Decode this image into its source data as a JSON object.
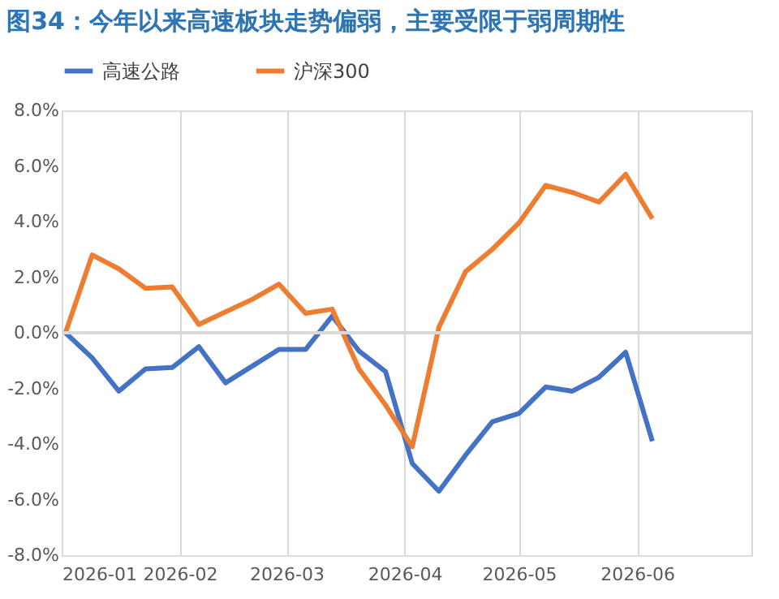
{
  "chart_data": {
    "type": "line",
    "title": "图34：今年以来高速板块走势偏弱，主要受限于弱周期性",
    "x": [
      "2026-01-02",
      "2026-01-09",
      "2026-01-16",
      "2026-01-23",
      "2026-01-30",
      "2026-02-06",
      "2026-02-13",
      "2026-02-20",
      "2026-02-27",
      "2026-03-06",
      "2026-03-13",
      "2026-03-20",
      "2026-03-27",
      "2026-04-03",
      "2026-04-10",
      "2026-04-17",
      "2026-04-24",
      "2026-05-01",
      "2026-05-08",
      "2026-05-15",
      "2026-05-22",
      "2026-05-29",
      "2026-06-05"
    ],
    "series": [
      {
        "name": "高速公路",
        "color": "#4472c4",
        "values": [
          0,
          -0.9,
          -2.1,
          -1.3,
          -1.25,
          -0.5,
          -1.8,
          -1.2,
          -0.6,
          -0.6,
          0.6,
          -0.65,
          -1.4,
          -4.7,
          -5.7,
          -4.4,
          -3.2,
          -2.9,
          -1.95,
          -2.1,
          -1.6,
          -0.7,
          -3.9
        ]
      },
      {
        "name": "沪深300",
        "color": "#ed7d31",
        "values": [
          0,
          2.8,
          2.3,
          1.6,
          1.65,
          0.3,
          0.75,
          1.2,
          1.75,
          0.7,
          0.85,
          -1.3,
          -2.6,
          -4.1,
          0.2,
          2.2,
          3.0,
          3.95,
          5.3,
          5.05,
          4.7,
          5.7,
          4.1
        ]
      }
    ],
    "xlim": [
      "2026-01-01",
      "2026-07-01"
    ],
    "xticks": [
      {
        "value": "2026-01-01",
        "label": "2026-01"
      },
      {
        "value": "2026-02-01",
        "label": "2026-02"
      },
      {
        "value": "2026-03-01",
        "label": "2026-03"
      },
      {
        "value": "2026-04-01",
        "label": "2026-04"
      },
      {
        "value": "2026-05-01",
        "label": "2026-05"
      },
      {
        "value": "2026-06-01",
        "label": "2026-06"
      },
      {
        "value": "2026-07-01",
        "label": null
      }
    ],
    "ylim": [
      -8,
      8
    ],
    "yticks": [
      {
        "value": -8,
        "label": "-8.0%"
      },
      {
        "value": -6,
        "label": "-6.0%"
      },
      {
        "value": -4,
        "label": "-4.0%"
      },
      {
        "value": -2,
        "label": "-2.0%"
      },
      {
        "value": 0,
        "label": "0.0%"
      },
      {
        "value": 2,
        "label": "2.0%"
      },
      {
        "value": 4,
        "label": "4.0%"
      },
      {
        "value": 6,
        "label": "6.0%"
      },
      {
        "value": 8,
        "label": "8.0%"
      }
    ],
    "ref_lines": [
      {
        "axis": "y",
        "value": 0,
        "color": "#d9d9d9"
      }
    ],
    "grid": "x",
    "legend": "top",
    "marker": "none",
    "line_style": "solid"
  }
}
